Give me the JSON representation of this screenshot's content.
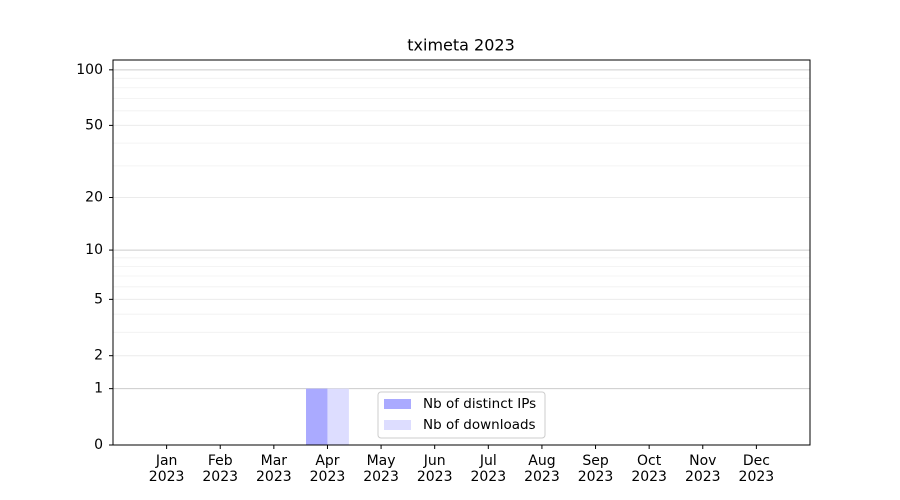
{
  "chart_data": {
    "type": "bar",
    "title": "tximeta 2023",
    "categories": [
      "Jan\n2023",
      "Feb\n2023",
      "Mar\n2023",
      "Apr\n2023",
      "May\n2023",
      "Jun\n2023",
      "Jul\n2023",
      "Aug\n2023",
      "Sep\n2023",
      "Oct\n2023",
      "Nov\n2023",
      "Dec\n2023"
    ],
    "series": [
      {
        "name": "Nb of distinct IPs",
        "color": "#aaaaff",
        "values": [
          0,
          0,
          0,
          1,
          0,
          0,
          0,
          0,
          0,
          0,
          0,
          0
        ]
      },
      {
        "name": "Nb of downloads",
        "color": "#ddddff",
        "values": [
          0,
          0,
          0,
          1,
          0,
          0,
          0,
          0,
          0,
          0,
          0,
          0
        ]
      }
    ],
    "yscale": "log1p",
    "ylim": [
      0,
      113
    ],
    "yticks": [
      0,
      1,
      2,
      5,
      10,
      20,
      50,
      100
    ],
    "yminorticks": [
      3,
      4,
      6,
      7,
      8,
      9,
      30,
      40,
      60,
      70,
      80,
      90
    ],
    "grid": true,
    "legend": "lower center"
  }
}
